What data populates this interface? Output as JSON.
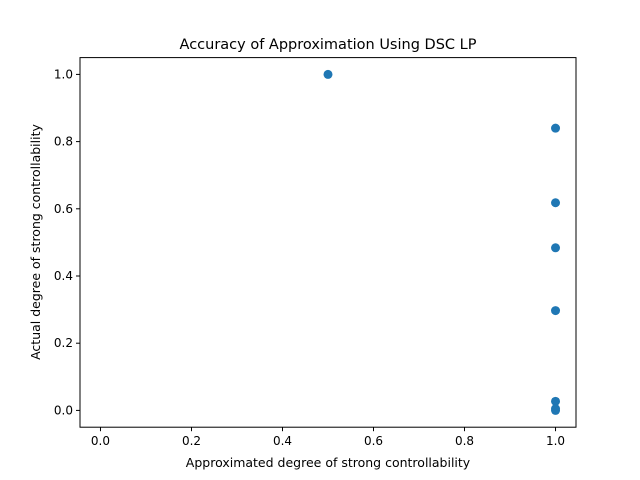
{
  "chart_data": {
    "type": "scatter",
    "title": "Accuracy of Approximation Using DSC LP",
    "xlabel": "Approximated degree of strong controllability",
    "ylabel": "Actual degree of strong controllability",
    "xlim": [
      -0.045,
      1.045
    ],
    "ylim": [
      -0.05,
      1.05
    ],
    "xticks": [
      "0.0",
      "0.2",
      "0.4",
      "0.6",
      "0.8",
      "1.0"
    ],
    "yticks": [
      "0.0",
      "0.2",
      "0.4",
      "0.6",
      "0.8",
      "1.0"
    ],
    "grid": false,
    "point_color": "#1f77b4",
    "points": [
      {
        "x": 0.5,
        "y": 1.0
      },
      {
        "x": 1.0,
        "y": 0.84
      },
      {
        "x": 1.0,
        "y": 0.618
      },
      {
        "x": 1.0,
        "y": 0.484
      },
      {
        "x": 1.0,
        "y": 0.297
      },
      {
        "x": 1.0,
        "y": 0.027
      },
      {
        "x": 1.0,
        "y": 0.005
      },
      {
        "x": 1.0,
        "y": 0.0
      }
    ]
  }
}
